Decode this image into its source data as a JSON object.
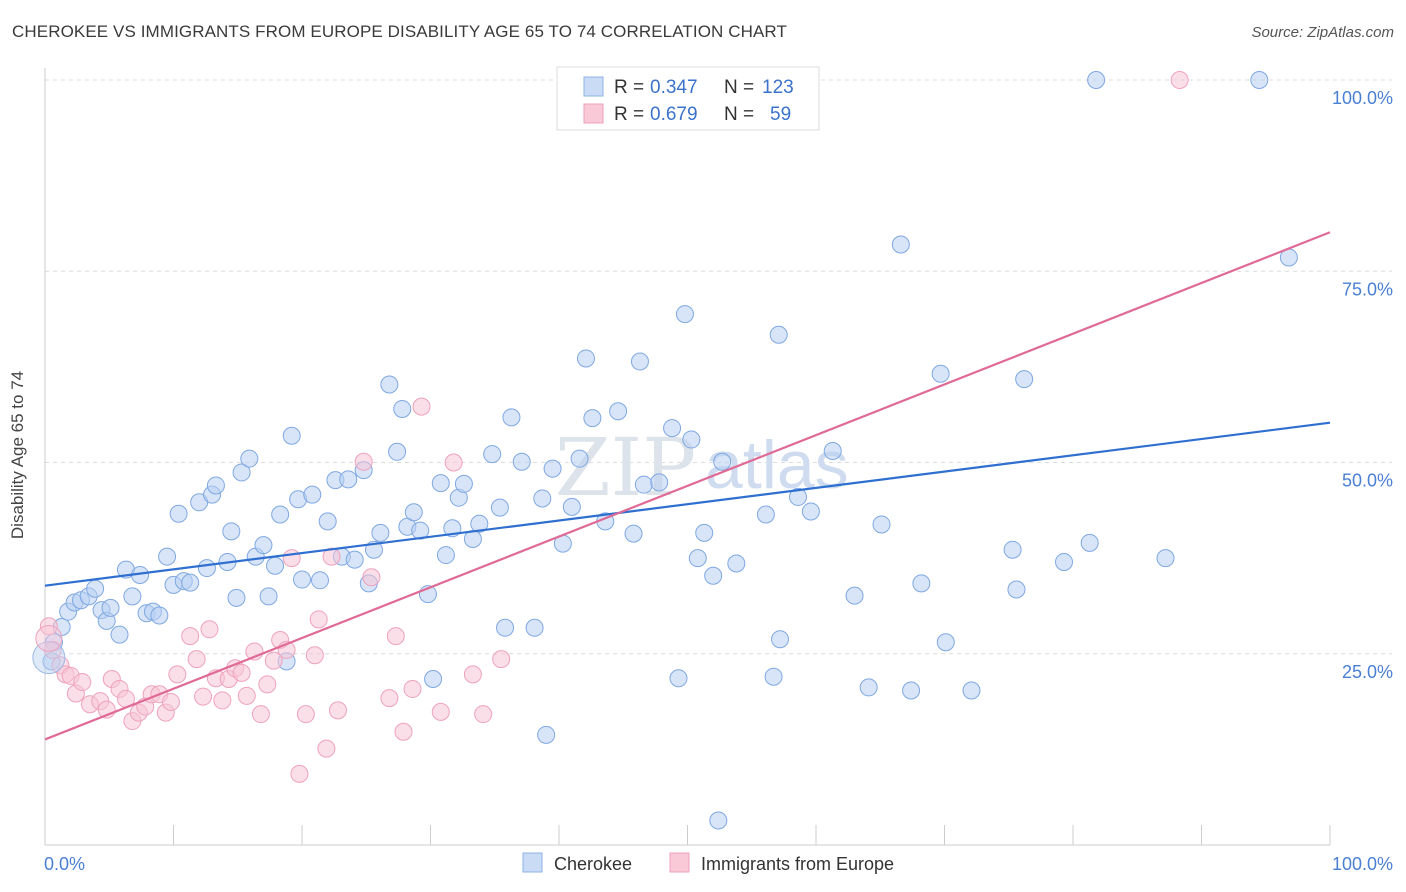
{
  "title": "CHEROKEE VS IMMIGRANTS FROM EUROPE DISABILITY AGE 65 TO 74 CORRELATION CHART",
  "source": "Source: ZipAtlas.com",
  "watermark": {
    "zip": "ZIP",
    "atlas": "atlas"
  },
  "chart_data": {
    "type": "scatter",
    "title": "CHEROKEE VS IMMIGRANTS FROM EUROPE DISABILITY AGE 65 TO 74 CORRELATION CHART",
    "xlabel": "",
    "ylabel": "Disability Age 65 to 74",
    "xlim": [
      0,
      100
    ],
    "ylim": [
      0,
      100
    ],
    "x_tick_labels": [
      "0.0%",
      "100.0%"
    ],
    "y_tick_labels": [
      "25.0%",
      "50.0%",
      "75.0%",
      "100.0%"
    ],
    "y_ticks": [
      25,
      50,
      75,
      100
    ],
    "grid": true,
    "legend_position": "top-center",
    "colors": {
      "Cherokee": "#6fa0e0",
      "Immigrants from Europe": "#f1a0bc",
      "cherokee_line": "#2f6fd0",
      "europe_line": "#e06a96"
    },
    "legend": [
      {
        "name": "Cherokee",
        "r_label": "R =",
        "r_value": "0.347",
        "n_label": "N =",
        "n_value": "123"
      },
      {
        "name": "Immigrants from Europe",
        "r_label": "R =",
        "r_value": "0.679",
        "n_label": "N =",
        "n_value": "59"
      }
    ],
    "series": [
      {
        "name": "Cherokee",
        "trend": {
          "x": [
            0,
            100
          ],
          "y": [
            33.9,
            55.2
          ]
        },
        "points": [
          [
            0.5,
            24
          ],
          [
            0.7,
            26.5
          ],
          [
            1.3,
            28.5
          ],
          [
            1.8,
            30.5
          ],
          [
            2.3,
            31.7
          ],
          [
            2.8,
            32
          ],
          [
            3.4,
            32.5
          ],
          [
            3.9,
            33.5
          ],
          [
            4.4,
            30.7
          ],
          [
            4.8,
            29.3
          ],
          [
            5.1,
            31
          ],
          [
            5.8,
            27.5
          ],
          [
            6.3,
            36
          ],
          [
            6.8,
            32.5
          ],
          [
            7.4,
            35.3
          ],
          [
            7.9,
            30.3
          ],
          [
            8.4,
            30.5
          ],
          [
            8.9,
            30
          ],
          [
            9.5,
            37.7
          ],
          [
            10.0,
            34
          ],
          [
            10.4,
            43.3
          ],
          [
            10.8,
            34.5
          ],
          [
            11.3,
            34.3
          ],
          [
            12.0,
            44.8
          ],
          [
            12.6,
            36.2
          ],
          [
            13.0,
            45.8
          ],
          [
            13.3,
            47
          ],
          [
            14.2,
            37
          ],
          [
            14.5,
            41
          ],
          [
            14.9,
            32.3
          ],
          [
            15.3,
            48.7
          ],
          [
            15.9,
            50.5
          ],
          [
            16.4,
            37.7
          ],
          [
            17.0,
            39.2
          ],
          [
            17.4,
            32.5
          ],
          [
            17.9,
            36.5
          ],
          [
            18.3,
            43.2
          ],
          [
            18.8,
            24
          ],
          [
            19.2,
            53.5
          ],
          [
            19.7,
            45.2
          ],
          [
            20.0,
            34.7
          ],
          [
            20.8,
            45.8
          ],
          [
            21.4,
            34.6
          ],
          [
            22.0,
            42.3
          ],
          [
            22.6,
            47.7
          ],
          [
            23.1,
            37.7
          ],
          [
            23.6,
            47.8
          ],
          [
            24.1,
            37.3
          ],
          [
            24.8,
            49
          ],
          [
            25.2,
            34.2
          ],
          [
            25.6,
            38.6
          ],
          [
            26.1,
            40.8
          ],
          [
            26.8,
            60.2
          ],
          [
            27.4,
            51.4
          ],
          [
            27.8,
            57
          ],
          [
            28.2,
            41.6
          ],
          [
            28.7,
            43.5
          ],
          [
            29.2,
            41.1
          ],
          [
            29.8,
            32.8
          ],
          [
            30.2,
            21.7
          ],
          [
            30.8,
            47.3
          ],
          [
            31.2,
            37.9
          ],
          [
            31.7,
            41.4
          ],
          [
            32.2,
            45.4
          ],
          [
            32.6,
            47.2
          ],
          [
            33.3,
            40
          ],
          [
            33.8,
            42
          ],
          [
            34.8,
            51.1
          ],
          [
            35.4,
            44.1
          ],
          [
            35.8,
            28.4
          ],
          [
            36.3,
            55.9
          ],
          [
            37.1,
            50.1
          ],
          [
            38.1,
            28.4
          ],
          [
            38.7,
            45.3
          ],
          [
            39.0,
            14.4
          ],
          [
            39.5,
            49.2
          ],
          [
            40.3,
            39.4
          ],
          [
            41.0,
            44.2
          ],
          [
            41.6,
            50.5
          ],
          [
            42.1,
            63.6
          ],
          [
            42.6,
            55.8
          ],
          [
            43.6,
            42.3
          ],
          [
            44.6,
            56.7
          ],
          [
            45.8,
            40.7
          ],
          [
            46.3,
            63.2
          ],
          [
            46.6,
            47.1
          ],
          [
            47.8,
            47.4
          ],
          [
            48.8,
            54.5
          ],
          [
            49.3,
            21.8
          ],
          [
            49.8,
            69.4
          ],
          [
            50.3,
            53
          ],
          [
            50.8,
            37.5
          ],
          [
            51.3,
            40.8
          ],
          [
            52.0,
            35.2
          ],
          [
            52.4,
            3.2
          ],
          [
            52.7,
            50.1
          ],
          [
            53.8,
            36.8
          ],
          [
            56.1,
            43.2
          ],
          [
            56.7,
            22
          ],
          [
            57.1,
            66.7
          ],
          [
            57.2,
            26.9
          ],
          [
            58.6,
            45.5
          ],
          [
            59.6,
            43.6
          ],
          [
            61.3,
            51.5
          ],
          [
            63.0,
            32.6
          ],
          [
            64.1,
            20.6
          ],
          [
            65.1,
            41.9
          ],
          [
            66.6,
            78.5
          ],
          [
            67.4,
            20.2
          ],
          [
            68.2,
            34.2
          ],
          [
            69.7,
            61.6
          ],
          [
            70.1,
            26.5
          ],
          [
            72.1,
            20.2
          ],
          [
            75.3,
            38.6
          ],
          [
            75.6,
            33.4
          ],
          [
            76.2,
            60.9
          ],
          [
            79.3,
            37
          ],
          [
            81.3,
            39.5
          ],
          [
            81.8,
            100
          ],
          [
            87.2,
            37.5
          ],
          [
            94.5,
            100
          ],
          [
            96.8,
            76.8
          ]
        ]
      },
      {
        "name": "Immigrants from Europe",
        "trend": {
          "x": [
            0,
            100
          ],
          "y": [
            13.8,
            80.1
          ]
        },
        "points": [
          [
            0.3,
            28.6
          ],
          [
            0.6,
            25.5
          ],
          [
            1.2,
            23.5
          ],
          [
            1.6,
            22.3
          ],
          [
            2.0,
            22.1
          ],
          [
            2.4,
            19.8
          ],
          [
            2.9,
            21.3
          ],
          [
            3.5,
            18.4
          ],
          [
            4.3,
            18.8
          ],
          [
            4.8,
            17.7
          ],
          [
            5.2,
            21.7
          ],
          [
            5.8,
            20.4
          ],
          [
            6.3,
            19.1
          ],
          [
            6.8,
            16.2
          ],
          [
            7.3,
            17.3
          ],
          [
            7.8,
            18.1
          ],
          [
            8.3,
            19.7
          ],
          [
            8.9,
            19.7
          ],
          [
            9.4,
            17.3
          ],
          [
            9.8,
            18.7
          ],
          [
            10.3,
            22.3
          ],
          [
            11.3,
            27.3
          ],
          [
            11.8,
            24.3
          ],
          [
            12.3,
            19.4
          ],
          [
            12.8,
            28.2
          ],
          [
            13.3,
            21.8
          ],
          [
            13.8,
            18.9
          ],
          [
            14.3,
            21.7
          ],
          [
            14.8,
            23.1
          ],
          [
            15.3,
            22.5
          ],
          [
            15.7,
            19.5
          ],
          [
            16.3,
            25.3
          ],
          [
            16.8,
            17.1
          ],
          [
            17.3,
            21
          ],
          [
            17.8,
            24.1
          ],
          [
            18.3,
            26.8
          ],
          [
            18.8,
            25.5
          ],
          [
            19.2,
            37.5
          ],
          [
            19.8,
            9.3
          ],
          [
            20.3,
            17.1
          ],
          [
            21.0,
            24.8
          ],
          [
            21.3,
            29.5
          ],
          [
            21.9,
            12.6
          ],
          [
            22.3,
            37.7
          ],
          [
            22.8,
            17.6
          ],
          [
            24.8,
            50.1
          ],
          [
            25.4,
            35
          ],
          [
            26.8,
            19.2
          ],
          [
            27.3,
            27.3
          ],
          [
            27.9,
            14.8
          ],
          [
            28.6,
            20.4
          ],
          [
            29.3,
            57.3
          ],
          [
            30.8,
            17.4
          ],
          [
            31.8,
            50
          ],
          [
            33.3,
            22.3
          ],
          [
            34.1,
            17.1
          ],
          [
            35.5,
            24.3
          ],
          [
            88.3,
            100
          ]
        ]
      }
    ]
  }
}
